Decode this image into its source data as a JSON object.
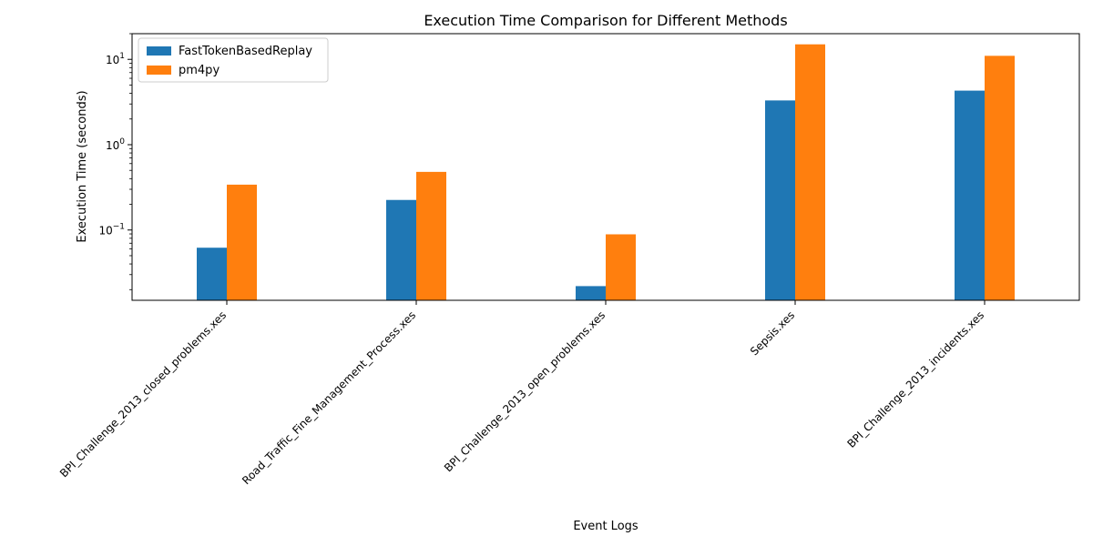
{
  "chart_data": {
    "type": "bar",
    "title": "Execution Time Comparison for Different Methods",
    "xlabel": "Event Logs",
    "ylabel": "Execution Time (seconds)",
    "yscale": "log",
    "ylim": [
      0.015,
      20
    ],
    "y_ticks": [
      {
        "value": 0.1,
        "base": "10",
        "exp": "−1"
      },
      {
        "value": 1,
        "base": "10",
        "exp": "0"
      },
      {
        "value": 10,
        "base": "10",
        "exp": "1"
      }
    ],
    "grid": false,
    "legend_position": "top-left",
    "categories": [
      "BPI_Challenge_2013_closed_problems.xes",
      "Road_Traffic_Fine_Management_Process.xes",
      "BPI_Challenge_2013_open_problems.xes",
      "Sepsis.xes",
      "BPI_Challenge_2013_incidents.xes"
    ],
    "series": [
      {
        "name": "FastTokenBasedReplay",
        "color": "#1f77b4",
        "values": [
          0.062,
          0.225,
          0.022,
          3.3,
          4.3
        ]
      },
      {
        "name": "pm4py",
        "color": "#ff7f0e",
        "values": [
          0.34,
          0.48,
          0.089,
          15.0,
          11.0
        ]
      }
    ]
  }
}
